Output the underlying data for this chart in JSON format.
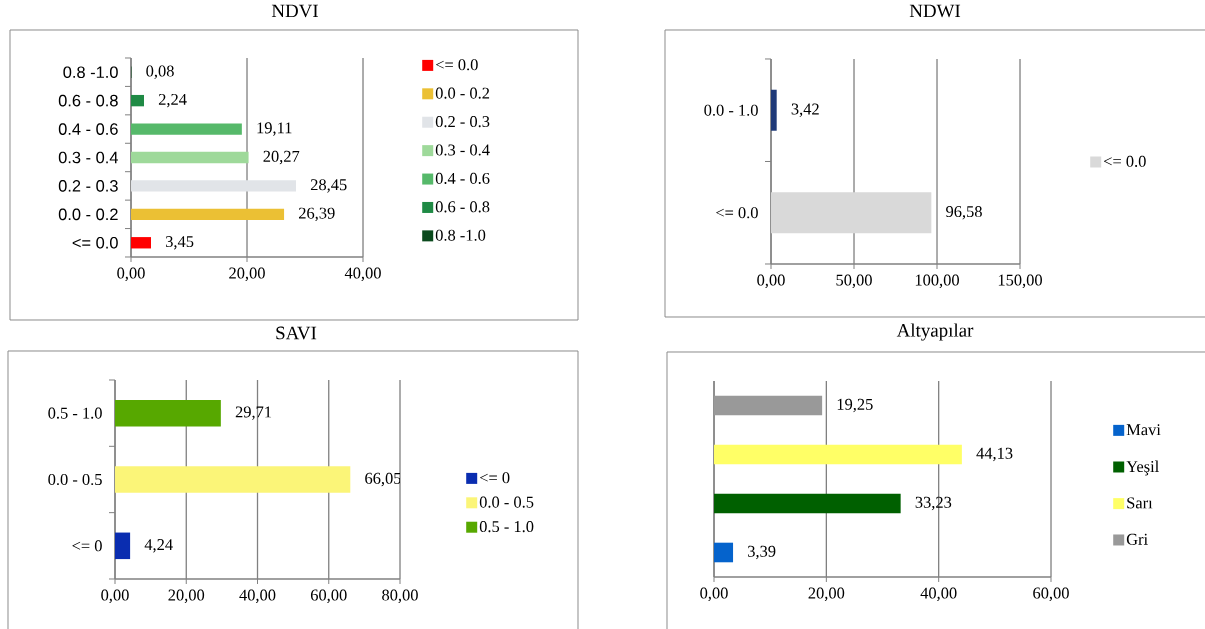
{
  "chart_data": [
    {
      "type": "bar",
      "orientation": "horizontal",
      "title": "NDVI",
      "categories": [
        "0.8 -1.0",
        "0.6 - 0.8",
        "0.4 - 0.6",
        "0.3 - 0.4",
        "0.2 - 0.3",
        "0.0 - 0.2",
        "<= 0.0"
      ],
      "series": [
        {
          "name": "<= 0.0",
          "color": "#ff0000",
          "values": [
            null,
            null,
            null,
            null,
            null,
            null,
            3.45
          ],
          "value_labels": [
            null,
            null,
            null,
            null,
            null,
            null,
            "3,45"
          ]
        },
        {
          "name": "0.0 - 0.2",
          "color": "#ebc034",
          "values": [
            null,
            null,
            null,
            null,
            null,
            26.39,
            null
          ],
          "value_labels": [
            null,
            null,
            null,
            null,
            null,
            "26,39",
            null
          ]
        },
        {
          "name": "0.2 - 0.3",
          "color": "#e1e4e8",
          "values": [
            null,
            null,
            null,
            null,
            28.45,
            null,
            null
          ],
          "value_labels": [
            null,
            null,
            null,
            null,
            "28,45",
            null,
            null
          ]
        },
        {
          "name": "0.3 - 0.4",
          "color": "#9ed99a",
          "values": [
            null,
            null,
            null,
            20.27,
            null,
            null,
            null
          ],
          "value_labels": [
            null,
            null,
            null,
            "20,27",
            null,
            null,
            null
          ]
        },
        {
          "name": "0.4 - 0.6",
          "color": "#56b96a",
          "values": [
            null,
            null,
            19.11,
            null,
            null,
            null,
            null
          ],
          "value_labels": [
            null,
            null,
            "19,11",
            null,
            null,
            null,
            null
          ]
        },
        {
          "name": "0.6 - 0.8",
          "color": "#1f8a45",
          "values": [
            null,
            2.24,
            null,
            null,
            null,
            null,
            null
          ],
          "value_labels": [
            null,
            "2,24",
            null,
            null,
            null,
            null,
            null
          ]
        },
        {
          "name": "0.8 -1.0",
          "color": "#0b4a1d",
          "values": [
            0.08,
            null,
            null,
            null,
            null,
            null,
            null
          ],
          "value_labels": [
            "0,08",
            null,
            null,
            null,
            null,
            null,
            null
          ]
        }
      ],
      "xlim": [
        0,
        40
      ],
      "xticks": [
        {
          "value": 0,
          "label": "0,00"
        },
        {
          "value": 20,
          "label": "20,00"
        },
        {
          "value": 40,
          "label": "40,00"
        }
      ],
      "grid": "x",
      "legend": "right"
    },
    {
      "type": "bar",
      "orientation": "horizontal",
      "title": "NDWI",
      "categories": [
        "0.0 - 1.0",
        "<= 0.0"
      ],
      "series": [
        {
          "name": "<= 0.0",
          "color": "#d9d9d9",
          "values": [
            null,
            96.58
          ],
          "value_labels": [
            null,
            "96,58"
          ]
        },
        {
          "color": "#1f3a78",
          "values": [
            3.42,
            null
          ],
          "value_labels": [
            "3,42",
            null
          ]
        }
      ],
      "xlim": [
        0,
        150
      ],
      "xticks": [
        {
          "value": 0,
          "label": "0,00"
        },
        {
          "value": 50,
          "label": "50,00"
        },
        {
          "value": 100,
          "label": "100,00"
        },
        {
          "value": 150,
          "label": "150,00"
        }
      ],
      "grid": "x",
      "legend": "right"
    },
    {
      "type": "bar",
      "orientation": "horizontal",
      "title": "SAVI",
      "categories": [
        "0.5 - 1.0",
        "0.0 - 0.5",
        "<= 0"
      ],
      "series": [
        {
          "name": "<= 0",
          "color": "#0a2db0",
          "values": [
            null,
            null,
            4.24
          ],
          "value_labels": [
            null,
            null,
            "4,24"
          ]
        },
        {
          "name": "0.0 - 0.5",
          "color": "#fbf578",
          "values": [
            null,
            66.05,
            null
          ],
          "value_labels": [
            null,
            "66,05",
            null
          ]
        },
        {
          "name": "0.5 - 1.0",
          "color": "#57a800",
          "values": [
            29.71,
            null,
            null
          ],
          "value_labels": [
            "29,71",
            null,
            null
          ]
        }
      ],
      "xlim": [
        0,
        80
      ],
      "xticks": [
        {
          "value": 0,
          "label": "0,00"
        },
        {
          "value": 20,
          "label": "20,00"
        },
        {
          "value": 40,
          "label": "40,00"
        },
        {
          "value": 60,
          "label": "60,00"
        },
        {
          "value": 80,
          "label": "80,00"
        }
      ],
      "grid": "x",
      "legend": "right"
    },
    {
      "type": "bar",
      "orientation": "horizontal",
      "title": "Altyapılar",
      "categories": [
        null,
        null,
        null,
        null
      ],
      "series": [
        {
          "name": "Mavi",
          "color": "#0563cc",
          "values": [
            null,
            null,
            null,
            3.39
          ],
          "value_labels": [
            null,
            null,
            null,
            "3,39"
          ]
        },
        {
          "name": "Yeşil",
          "color": "#006000",
          "values": [
            null,
            null,
            33.23,
            null
          ],
          "value_labels": [
            null,
            null,
            "33,23",
            null
          ]
        },
        {
          "name": "Sarı",
          "color": "#ffff66",
          "values": [
            null,
            44.13,
            null,
            null
          ],
          "value_labels": [
            null,
            "44,13",
            null,
            null
          ]
        },
        {
          "name": "Gri",
          "color": "#999999",
          "values": [
            19.25,
            null,
            null,
            null
          ],
          "value_labels": [
            "19,25",
            null,
            null,
            null
          ]
        }
      ],
      "xlim": [
        0,
        60
      ],
      "xticks": [
        {
          "value": 0,
          "label": "0,00"
        },
        {
          "value": 20,
          "label": "20,00"
        },
        {
          "value": 40,
          "label": "40,00"
        },
        {
          "value": 60,
          "label": "60,00"
        }
      ],
      "grid": "x",
      "legend": "right"
    }
  ]
}
